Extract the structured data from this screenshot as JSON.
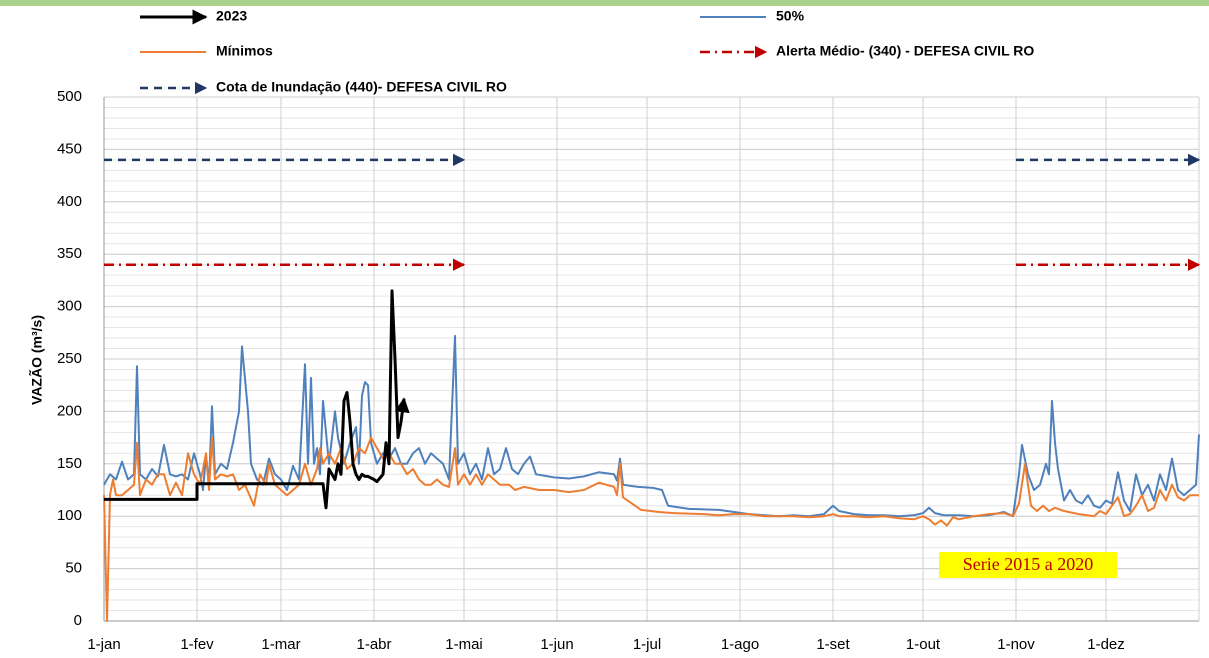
{
  "chart_data": {
    "type": "line",
    "y_label": "VAZÃO (m³/s)",
    "annotation": "Serie 2015 a 2020",
    "xlim": [
      0,
      365
    ],
    "ylim": [
      0,
      500
    ],
    "yticks": [
      0,
      50,
      100,
      150,
      200,
      250,
      300,
      350,
      400,
      450,
      500
    ],
    "xticks": [
      {
        "value": 0,
        "label": "1-jan"
      },
      {
        "value": 31,
        "label": "1-fev"
      },
      {
        "value": 59,
        "label": "1-mar"
      },
      {
        "value": 90,
        "label": "1-abr"
      },
      {
        "value": 120,
        "label": "1-mai"
      },
      {
        "value": 151,
        "label": "1-jun"
      },
      {
        "value": 181,
        "label": "1-jul"
      },
      {
        "value": 212,
        "label": "1-ago"
      },
      {
        "value": 243,
        "label": "1-set"
      },
      {
        "value": 273,
        "label": "1-out"
      },
      {
        "value": 304,
        "label": "1-nov"
      },
      {
        "value": 334,
        "label": "1-dez"
      }
    ],
    "grid": true,
    "legend": "top",
    "series": [
      {
        "name": "2023",
        "color": "#000000",
        "style": "solid",
        "width": 3,
        "arrow": true,
        "x": [
          0,
          31,
          31,
          73,
          74,
          75,
          76,
          77,
          78,
          79,
          80,
          81,
          82,
          83,
          84,
          85,
          86,
          87,
          88,
          90,
          91,
          93,
          94,
          95,
          96,
          97,
          98,
          99,
          100
        ],
        "values": [
          116,
          116,
          131,
          131,
          108,
          145,
          140,
          135,
          150,
          140,
          210,
          218,
          190,
          150,
          140,
          135,
          140,
          138,
          138,
          135,
          133,
          140,
          170,
          150,
          315,
          250,
          175,
          190,
          212
        ]
      },
      {
        "name": "50%",
        "color": "#4f81bd",
        "style": "solid",
        "width": 2,
        "arrow": false,
        "x": [
          0,
          2,
          4,
          6,
          8,
          10,
          11,
          12,
          14,
          16,
          18,
          20,
          22,
          24,
          26,
          28,
          30,
          32,
          33,
          34,
          35,
          36,
          37,
          39,
          41,
          43,
          45,
          46,
          48,
          49,
          51,
          53,
          55,
          57,
          59,
          61,
          63,
          65,
          66,
          67,
          68,
          69,
          70,
          71,
          72,
          73,
          75,
          77,
          78,
          80,
          82,
          84,
          85,
          86,
          87,
          88,
          89,
          91,
          93,
          95,
          97,
          99,
          101,
          103,
          105,
          107,
          109,
          111,
          113,
          115,
          117,
          118,
          120,
          122,
          124,
          126,
          128,
          130,
          132,
          134,
          136,
          138,
          140,
          142,
          144,
          150,
          155,
          160,
          165,
          170,
          171,
          172,
          173,
          178,
          183,
          186,
          188,
          195,
          205,
          210,
          215,
          220,
          225,
          230,
          235,
          240,
          243,
          245,
          250,
          255,
          260,
          265,
          270,
          273,
          275,
          277,
          280,
          285,
          290,
          295,
          300,
          303,
          305,
          306,
          308,
          310,
          312,
          314,
          315,
          316,
          317,
          318,
          320,
          322,
          324,
          326,
          328,
          330,
          332,
          334,
          336,
          338,
          340,
          342,
          344,
          346,
          348,
          350,
          352,
          354,
          356,
          358,
          360,
          362,
          364,
          365
        ],
        "values": [
          130,
          140,
          135,
          152,
          135,
          140,
          243,
          140,
          135,
          145,
          138,
          168,
          140,
          138,
          140,
          135,
          160,
          140,
          125,
          158,
          130,
          205,
          140,
          150,
          145,
          170,
          200,
          262,
          200,
          150,
          135,
          130,
          155,
          140,
          135,
          125,
          148,
          135,
          190,
          245,
          150,
          232,
          150,
          165,
          140,
          210,
          150,
          200,
          175,
          150,
          170,
          185,
          150,
          215,
          228,
          225,
          170,
          150,
          160,
          155,
          165,
          150,
          150,
          160,
          165,
          150,
          160,
          155,
          150,
          135,
          272,
          150,
          160,
          140,
          150,
          135,
          165,
          140,
          145,
          165,
          145,
          140,
          150,
          157,
          140,
          137,
          136,
          138,
          142,
          140,
          134,
          155,
          130,
          128,
          127,
          125,
          110,
          107,
          106,
          104,
          102,
          101,
          100,
          101,
          100,
          102,
          110,
          105,
          102,
          101,
          101,
          100,
          101,
          103,
          108,
          103,
          101,
          101,
          100,
          101,
          104,
          100,
          140,
          168,
          140,
          125,
          130,
          150,
          140,
          210,
          170,
          145,
          115,
          125,
          115,
          112,
          120,
          110,
          108,
          115,
          112,
          142,
          115,
          105,
          140,
          120,
          130,
          115,
          140,
          125,
          155,
          125,
          120,
          125,
          130,
          178
        ]
      },
      {
        "name": "Mínimos",
        "color": "#ed7d31",
        "style": "solid",
        "width": 2,
        "arrow": false,
        "x": [
          0,
          1,
          2,
          3,
          4,
          6,
          8,
          10,
          11,
          12,
          14,
          16,
          18,
          20,
          22,
          24,
          26,
          28,
          30,
          32,
          34,
          35,
          36,
          37,
          39,
          41,
          43,
          45,
          47,
          50,
          52,
          54,
          55,
          57,
          59,
          61,
          63,
          65,
          67,
          69,
          71,
          72,
          73,
          75,
          77,
          79,
          81,
          83,
          85,
          87,
          89,
          91,
          93,
          95,
          97,
          99,
          101,
          103,
          105,
          107,
          109,
          111,
          113,
          115,
          117,
          118,
          120,
          122,
          124,
          126,
          128,
          130,
          132,
          135,
          137,
          140,
          145,
          150,
          155,
          160,
          165,
          170,
          171,
          172,
          173,
          176,
          179,
          185,
          190,
          200,
          205,
          210,
          215,
          220,
          225,
          230,
          235,
          240,
          243,
          245,
          250,
          255,
          260,
          265,
          270,
          273,
          275,
          277,
          279,
          281,
          283,
          285,
          290,
          295,
          300,
          303,
          305,
          307,
          309,
          311,
          313,
          315,
          317,
          320,
          325,
          330,
          332,
          334,
          336,
          338,
          340,
          342,
          344,
          346,
          348,
          350,
          352,
          354,
          356,
          358,
          360,
          362,
          365
        ],
        "values": [
          120,
          0,
          120,
          135,
          120,
          120,
          125,
          130,
          170,
          120,
          135,
          130,
          140,
          140,
          120,
          132,
          120,
          160,
          140,
          130,
          160,
          125,
          175,
          135,
          140,
          138,
          140,
          125,
          130,
          110,
          140,
          130,
          150,
          130,
          125,
          120,
          125,
          130,
          150,
          130,
          145,
          165,
          150,
          160,
          150,
          165,
          145,
          150,
          165,
          160,
          175,
          165,
          155,
          160,
          150,
          150,
          140,
          145,
          135,
          130,
          130,
          135,
          130,
          128,
          165,
          130,
          140,
          130,
          140,
          130,
          140,
          135,
          130,
          130,
          125,
          128,
          125,
          125,
          123,
          125,
          132,
          128,
          120,
          150,
          118,
          112,
          106,
          104,
          103,
          102,
          101,
          102,
          102,
          100,
          100,
          100,
          99,
          100,
          102,
          100,
          100,
          99,
          100,
          98,
          97,
          100,
          97,
          92,
          96,
          91,
          99,
          97,
          100,
          102,
          103,
          100,
          112,
          150,
          110,
          105,
          110,
          105,
          108,
          105,
          102,
          100,
          105,
          102,
          110,
          118,
          100,
          102,
          110,
          120,
          105,
          108,
          125,
          115,
          130,
          118,
          115,
          120,
          120
        ]
      },
      {
        "name": "Alerta Médio-  (340) - DEFESA CIVIL RO",
        "color": "#c00000",
        "style": "dashdot",
        "width": 2.5,
        "arrow": true,
        "x": [
          0,
          120,
          212,
          304,
          365
        ],
        "values": [
          340,
          340,
          null,
          340,
          340
        ]
      },
      {
        "name": "Cota de Inundação  (440)- DEFESA CIVIL RO",
        "color": "#1f3864",
        "style": "dashed",
        "width": 2.5,
        "arrow": true,
        "x": [
          0,
          120,
          212,
          304,
          365
        ],
        "values": [
          440,
          440,
          null,
          440,
          440
        ]
      }
    ]
  }
}
